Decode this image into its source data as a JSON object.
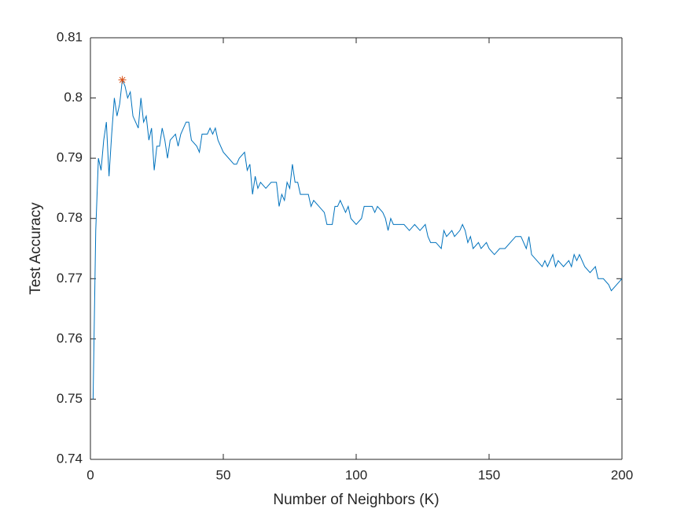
{
  "chart_data": {
    "type": "line",
    "x_label": "Number of Neighbors (K)",
    "y_label": "Test Accuracy",
    "x": [
      1,
      2,
      3,
      4,
      5,
      6,
      7,
      8,
      9,
      10,
      11,
      12,
      13,
      14,
      15,
      16,
      17,
      18,
      19,
      20,
      21,
      22,
      23,
      24,
      25,
      26,
      27,
      28,
      29,
      30,
      32,
      33,
      34,
      36,
      37,
      38,
      40,
      41,
      42,
      44,
      45,
      46,
      47,
      48,
      50,
      52,
      54,
      55,
      56,
      58,
      59,
      60,
      61,
      62,
      63,
      64,
      66,
      68,
      70,
      71,
      72,
      73,
      74,
      75,
      76,
      77,
      78,
      79,
      82,
      83,
      84,
      86,
      88,
      89,
      91,
      92,
      93,
      94,
      96,
      97,
      98,
      100,
      102,
      103,
      106,
      107,
      108,
      110,
      111,
      112,
      113,
      114,
      116,
      118,
      120,
      122,
      124,
      126,
      127,
      128,
      130,
      132,
      133,
      134,
      136,
      137,
      139,
      140,
      141,
      142,
      143,
      144,
      146,
      147,
      149,
      150,
      152,
      154,
      156,
      158,
      160,
      162,
      163,
      164,
      165,
      166,
      168,
      170,
      171,
      172,
      174,
      175,
      176,
      178,
      180,
      181,
      182,
      183,
      184,
      186,
      188,
      190,
      191,
      193,
      195,
      196,
      198,
      200
    ],
    "series": [
      {
        "color": "#0072bd",
        "values": [
          0.75,
          0.778,
          0.79,
          0.788,
          0.793,
          0.796,
          0.787,
          0.794,
          0.8,
          0.797,
          0.799,
          0.803,
          0.802,
          0.8,
          0.801,
          0.797,
          0.796,
          0.795,
          0.8,
          0.796,
          0.797,
          0.793,
          0.795,
          0.788,
          0.792,
          0.792,
          0.795,
          0.793,
          0.79,
          0.793,
          0.794,
          0.792,
          0.794,
          0.796,
          0.796,
          0.793,
          0.792,
          0.791,
          0.794,
          0.794,
          0.795,
          0.794,
          0.795,
          0.793,
          0.791,
          0.79,
          0.789,
          0.789,
          0.79,
          0.791,
          0.788,
          0.789,
          0.784,
          0.787,
          0.785,
          0.786,
          0.785,
          0.786,
          0.786,
          0.782,
          0.784,
          0.783,
          0.786,
          0.785,
          0.789,
          0.786,
          0.786,
          0.784,
          0.784,
          0.782,
          0.783,
          0.782,
          0.781,
          0.779,
          0.779,
          0.782,
          0.782,
          0.783,
          0.781,
          0.782,
          0.78,
          0.779,
          0.78,
          0.782,
          0.782,
          0.781,
          0.782,
          0.781,
          0.78,
          0.778,
          0.78,
          0.779,
          0.779,
          0.779,
          0.778,
          0.779,
          0.778,
          0.779,
          0.777,
          0.776,
          0.776,
          0.775,
          0.778,
          0.777,
          0.778,
          0.777,
          0.778,
          0.779,
          0.778,
          0.776,
          0.777,
          0.775,
          0.776,
          0.775,
          0.776,
          0.775,
          0.774,
          0.775,
          0.775,
          0.776,
          0.777,
          0.777,
          0.776,
          0.775,
          0.777,
          0.774,
          0.773,
          0.772,
          0.773,
          0.772,
          0.774,
          0.772,
          0.773,
          0.772,
          0.773,
          0.772,
          0.774,
          0.773,
          0.774,
          0.772,
          0.771,
          0.772,
          0.77,
          0.77,
          0.769,
          0.768,
          0.769,
          0.77
        ]
      }
    ],
    "highlight": {
      "x": 12,
      "y": 0.803,
      "color": "#d95319"
    },
    "xlim": [
      0,
      200
    ],
    "xticks": [
      0,
      50,
      100,
      150,
      200
    ],
    "ylim": [
      0.74,
      0.81
    ],
    "yticks": [
      0.74,
      0.75,
      0.76,
      0.77,
      0.78,
      0.79,
      0.8,
      0.81
    ],
    "grid": false
  }
}
